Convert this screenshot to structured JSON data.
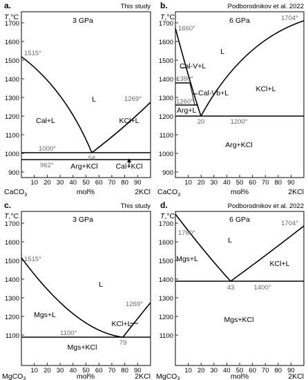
{
  "panels": [
    {
      "letter": "a.",
      "source": "This study",
      "pressure": "3 GPa",
      "ylabel_T": "T",
      "ylabel_unit": ",°C",
      "yticks": [
        "1700",
        "1600",
        "1500",
        "1400",
        "1300",
        "1200",
        "1100",
        "1000",
        "900"
      ],
      "xticks": [
        "10",
        "20",
        "30",
        "40",
        "50",
        "60",
        "70",
        "80",
        "90"
      ],
      "x_left": "CaCO",
      "x_left_sub": "3",
      "x_mid": "mol%",
      "x_right": "2KCl",
      "annotations": {
        "t1515": "1515°",
        "t1269": "1269°",
        "t1000": "1000°",
        "t962": "962°",
        "t56": "56",
        "L": "L",
        "CalL": "Cal+L",
        "KClL": "KCl+L",
        "ArgKCl": "Arg+KCl",
        "CalKCl": "Cal+KCl"
      }
    },
    {
      "letter": "b.",
      "source": "Podborodnikov et al. 2022",
      "pressure": "6 GPa",
      "ylabel_T": "T",
      "ylabel_unit": ",°C",
      "yticks": [
        "1700",
        "1600",
        "1500",
        "1400",
        "1300",
        "1200",
        "1100",
        "1000",
        "900"
      ],
      "xticks": [
        "10",
        "20",
        "30",
        "40",
        "50",
        "60",
        "70",
        "80",
        "90"
      ],
      "x_left": "CaCO",
      "x_left_sub": "3",
      "x_mid": "mol%",
      "x_right": "2KCl",
      "annotations": {
        "t1660": "1660°",
        "t1704": "1704°",
        "t1380": "1380°",
        "t1260": "1260°",
        "t20": "20",
        "t1200": "1200°",
        "L": "L",
        "CalVL": "Cal-V+L",
        "CalVbL": "Cal-Vb+L",
        "ArgL": "Arg+L",
        "KClL": "KCl+L",
        "ArgKCl": "Arg+KCl"
      }
    },
    {
      "letter": "c.",
      "source": "This study",
      "pressure": "3 GPa",
      "ylabel_T": "T",
      "ylabel_unit": ",°C",
      "yticks": [
        "1700",
        "1600",
        "1500",
        "1400",
        "1300",
        "1200",
        "1100"
      ],
      "xticks": [
        "10",
        "20",
        "30",
        "40",
        "50",
        "60",
        "70",
        "80",
        "90"
      ],
      "x_left": "MgCO",
      "x_left_sub": "3",
      "x_mid": "mol%",
      "x_right": "2KCl",
      "annotations": {
        "t1515": "1515°",
        "t1269": "1269°",
        "t1100": "1100°",
        "t79": "79",
        "L": "L",
        "MgsL": "Mgs+L",
        "KClL": "KCl+L",
        "MgsKCl": "Mgs+KCl"
      }
    },
    {
      "letter": "d.",
      "source": "Podborodnikov et al. 2022",
      "pressure": "6 GPa",
      "ylabel_T": "T",
      "ylabel_unit": ",°C",
      "yticks": [
        "1700",
        "1600",
        "1500",
        "1400",
        "1300",
        "1200",
        "1100"
      ],
      "xticks": [
        "10",
        "20",
        "30",
        "40",
        "50",
        "60",
        "70",
        "80",
        "90"
      ],
      "x_left": "MgCO",
      "x_left_sub": "3",
      "x_mid": "mol%",
      "x_right": "2KCl",
      "annotations": {
        "t1780": "1780°",
        "t1704": "1704°",
        "t43": "43",
        "t1400": "1400°",
        "L": "L",
        "MgsL": "Mgs+L",
        "KClL": "KCl+L",
        "MgsKCl": "Mgs+KCl"
      }
    }
  ]
}
